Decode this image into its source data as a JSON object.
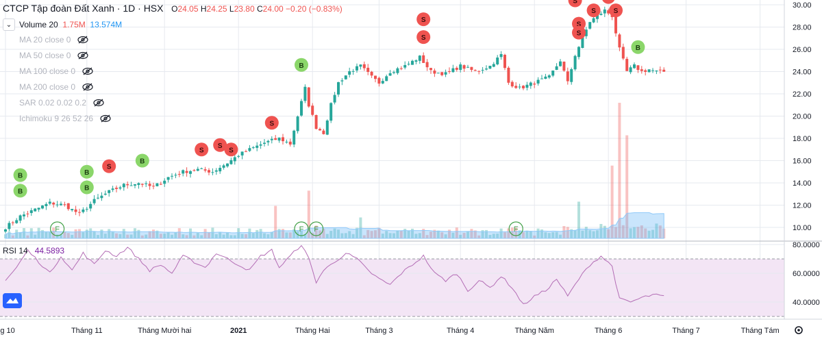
{
  "header": {
    "symbol_name": "CTCP Tập đoàn Đất Xanh · 1D · HSX",
    "open_label": "O",
    "open": "24.05",
    "high_label": "H",
    "high": "24.25",
    "low_label": "L",
    "low": "23.80",
    "close_label": "C",
    "close": "24.00",
    "change": "−0.20 (−0.83%)"
  },
  "volume_legend": {
    "label": "Volume 20",
    "value1": "1.75M",
    "value2": "13.574M"
  },
  "indicators": [
    {
      "label": "MA 20 close 0"
    },
    {
      "label": "MA 50 close 0"
    },
    {
      "label": "MA 100 close 0"
    },
    {
      "label": "MA 200 close 0"
    },
    {
      "label": "SAR 0.02 0.02 0.2"
    },
    {
      "label": "Ichimoku 9 26 52 26"
    }
  ],
  "rsi_legend": {
    "label": "RSI 14",
    "value": "44.5893"
  },
  "colors": {
    "up": "#26a69a",
    "down": "#ef5350",
    "buy": "#8bd66a",
    "sell": "#ef5350",
    "volume_ma": "#90caf9",
    "rsi": "#b36db5",
    "rsi_band": "#f3e5f5",
    "grid": "#e6e9ef"
  },
  "chart_data": [
    {
      "type": "candlestick",
      "title": "CTCP Tập đoàn Đất Xanh · 1D · HSX",
      "y_ticks": [
        "10.00",
        "12.00",
        "14.00",
        "16.00",
        "18.00",
        "20.00",
        "22.00",
        "24.00",
        "26.00",
        "28.00",
        "30.00"
      ],
      "ylim": [
        9,
        30.5
      ],
      "x_ticks": [
        "ng 10",
        "Tháng 11",
        "Tháng Mười hai",
        "2021",
        "Tháng Hai",
        "Tháng 3",
        "Tháng 4",
        "Tháng Năm",
        "Tháng 6",
        "Tháng 7",
        "Tháng Tám"
      ],
      "x_tick_index": [
        0,
        22,
        43,
        63,
        83,
        101,
        123,
        143,
        163,
        184,
        204
      ],
      "anchors_close": [
        [
          0,
          10.0
        ],
        [
          4,
          11.0
        ],
        [
          8,
          11.6
        ],
        [
          12,
          12.2
        ],
        [
          16,
          12.0
        ],
        [
          20,
          11.2
        ],
        [
          24,
          12.4
        ],
        [
          28,
          13.2
        ],
        [
          32,
          13.8
        ],
        [
          36,
          14.0
        ],
        [
          40,
          13.6
        ],
        [
          44,
          14.5
        ],
        [
          48,
          15.0
        ],
        [
          52,
          15.2
        ],
        [
          56,
          15.0
        ],
        [
          60,
          15.8
        ],
        [
          63,
          16.5
        ],
        [
          66,
          17.0
        ],
        [
          70,
          17.6
        ],
        [
          74,
          18.0
        ],
        [
          77,
          17.5
        ],
        [
          79,
          20.0
        ],
        [
          81,
          22.5
        ],
        [
          82,
          21.0
        ],
        [
          84,
          19.0
        ],
        [
          86,
          18.5
        ],
        [
          88,
          21.0
        ],
        [
          90,
          23.0
        ],
        [
          93,
          24.0
        ],
        [
          96,
          24.5
        ],
        [
          99,
          23.5
        ],
        [
          101,
          23.0
        ],
        [
          104,
          24.0
        ],
        [
          108,
          24.5
        ],
        [
          112,
          25.3
        ],
        [
          115,
          24.0
        ],
        [
          119,
          23.8
        ],
        [
          123,
          24.5
        ],
        [
          127,
          24.0
        ],
        [
          131,
          24.5
        ],
        [
          134,
          25.5
        ],
        [
          136,
          23.0
        ],
        [
          139,
          22.5
        ],
        [
          143,
          23.0
        ],
        [
          147,
          23.5
        ],
        [
          150,
          25.0
        ],
        [
          152,
          23.0
        ],
        [
          154,
          25.5
        ],
        [
          156,
          27.0
        ],
        [
          158,
          28.5
        ],
        [
          160,
          29.0
        ],
        [
          162,
          29.5
        ],
        [
          164,
          29.0
        ],
        [
          166,
          26.0
        ],
        [
          168,
          24.0
        ],
        [
          170,
          24.5
        ],
        [
          172,
          24.0
        ],
        [
          174,
          24.2
        ],
        [
          176,
          24.0
        ],
        [
          178,
          24.0
        ]
      ],
      "signals": [
        {
          "type": "B",
          "index": 4,
          "price": 14.7
        },
        {
          "type": "B",
          "index": 4,
          "price": 13.3
        },
        {
          "type": "B",
          "index": 22,
          "price": 15.0
        },
        {
          "type": "B",
          "index": 22,
          "price": 13.6
        },
        {
          "type": "S",
          "index": 28,
          "price": 15.5
        },
        {
          "type": "B",
          "index": 37,
          "price": 16.0
        },
        {
          "type": "S",
          "index": 53,
          "price": 17.0
        },
        {
          "type": "S",
          "index": 58,
          "price": 17.4
        },
        {
          "type": "S",
          "index": 61,
          "price": 17.0
        },
        {
          "type": "S",
          "index": 72,
          "price": 19.4
        },
        {
          "type": "B",
          "index": 80,
          "price": 24.6
        },
        {
          "type": "S",
          "index": 113,
          "price": 28.7
        },
        {
          "type": "S",
          "index": 113,
          "price": 27.1
        },
        {
          "type": "S",
          "index": 154,
          "price": 30.4
        },
        {
          "type": "S",
          "index": 159,
          "price": 29.5
        },
        {
          "type": "S",
          "index": 163,
          "price": 30.7
        },
        {
          "type": "S",
          "index": 165,
          "price": 29.5
        },
        {
          "type": "S",
          "index": 155,
          "price": 28.3
        },
        {
          "type": "S",
          "index": 155,
          "price": 27.5
        },
        {
          "type": "B",
          "index": 171,
          "price": 26.2
        }
      ],
      "f_markers": [
        14,
        80,
        84,
        138
      ]
    },
    {
      "type": "bar",
      "title": "Volume 20",
      "spikes": [
        [
          73,
          7
        ],
        [
          82,
          6
        ],
        [
          84,
          4
        ],
        [
          96,
          3
        ],
        [
          155,
          3
        ],
        [
          164,
          6
        ],
        [
          166,
          11
        ],
        [
          168,
          9
        ]
      ]
    },
    {
      "type": "line",
      "title": "RSI 14",
      "y_ticks": [
        "40.0000",
        "60.0000",
        "80.0000"
      ],
      "ylim": [
        25,
        82
      ],
      "bands": [
        30,
        70
      ],
      "anchors": [
        [
          0,
          55
        ],
        [
          3,
          64
        ],
        [
          6,
          76
        ],
        [
          9,
          68
        ],
        [
          12,
          60
        ],
        [
          15,
          72
        ],
        [
          18,
          62
        ],
        [
          21,
          74
        ],
        [
          24,
          66
        ],
        [
          27,
          76
        ],
        [
          30,
          72
        ],
        [
          33,
          78
        ],
        [
          36,
          70
        ],
        [
          39,
          62
        ],
        [
          42,
          66
        ],
        [
          45,
          60
        ],
        [
          48,
          72
        ],
        [
          51,
          68
        ],
        [
          54,
          64
        ],
        [
          57,
          74
        ],
        [
          60,
          70
        ],
        [
          63,
          66
        ],
        [
          66,
          62
        ],
        [
          69,
          72
        ],
        [
          72,
          76
        ],
        [
          74,
          64
        ],
        [
          77,
          72
        ],
        [
          80,
          80
        ],
        [
          82,
          70
        ],
        [
          84,
          54
        ],
        [
          86,
          62
        ],
        [
          89,
          68
        ],
        [
          92,
          74
        ],
        [
          95,
          70
        ],
        [
          98,
          62
        ],
        [
          101,
          56
        ],
        [
          104,
          52
        ],
        [
          107,
          60
        ],
        [
          110,
          66
        ],
        [
          113,
          72
        ],
        [
          116,
          60
        ],
        [
          119,
          55
        ],
        [
          122,
          60
        ],
        [
          125,
          48
        ],
        [
          128,
          55
        ],
        [
          131,
          50
        ],
        [
          134,
          58
        ],
        [
          137,
          50
        ],
        [
          140,
          38
        ],
        [
          143,
          44
        ],
        [
          146,
          48
        ],
        [
          149,
          56
        ],
        [
          152,
          44
        ],
        [
          155,
          56
        ],
        [
          158,
          66
        ],
        [
          161,
          72
        ],
        [
          164,
          65
        ],
        [
          166,
          42
        ],
        [
          169,
          40
        ],
        [
          172,
          43
        ],
        [
          175,
          45
        ],
        [
          178,
          44
        ]
      ]
    }
  ]
}
